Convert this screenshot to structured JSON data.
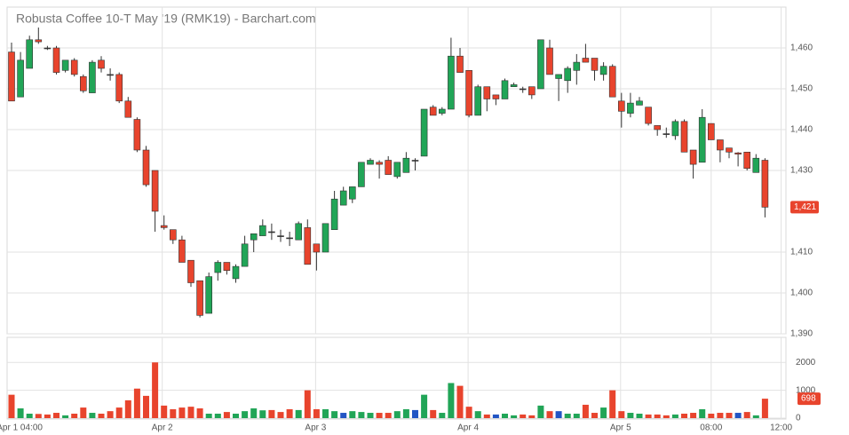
{
  "chart_data": {
    "type": "candlestick",
    "title": "Robusta Coffee 10-T May '19 (RMK19) - Barchart.com",
    "up_color": "#21a557",
    "down_color": "#e8442d",
    "grid": true,
    "open": [
      1459,
      1448,
      1455,
      1462,
      1460,
      1460,
      1454.5,
      1457,
      1453,
      1449,
      1457,
      1453.5,
      1453.5,
      1447,
      1442.5,
      1435,
      1430,
      1416.5,
      1415.5,
      1413,
      1408,
      1403,
      1395,
      1405,
      1407.5,
      1403.5,
      1406.5,
      1413,
      1414,
      1415,
      1414,
      1413.5,
      1413,
      1416,
      1412,
      1410,
      1415.5,
      1421.5,
      1423,
      1426,
      1431.5,
      1432,
      1432.5,
      1428.5,
      1429.5,
      1432.5,
      1433.5,
      1445.5,
      1444,
      1445,
      1458,
      1454.5,
      1443.5,
      1450.5,
      1448.5,
      1447.5,
      1450.5,
      1450,
      1450.5,
      1450,
      1460,
      1452.5,
      1452,
      1454.5,
      1457.5,
      1457.5,
      1453.5,
      1455.5,
      1447,
      1444,
      1446,
      1445.5,
      1441,
      1439,
      1438.5,
      1442,
      1435,
      1432,
      1441.5,
      1437.5,
      1435.5,
      1434.3,
      1434.5,
      1429.5,
      1432.5
    ],
    "high": [
      1461.3,
      1459,
      1463,
      1465,
      1460.5,
      1460.5,
      1457,
      1457.5,
      1453.5,
      1457,
      1458,
      1455,
      1454,
      1448,
      1443,
      1436,
      1430,
      1419,
      1415.5,
      1414,
      1408,
      1403,
      1405,
      1408,
      1407.5,
      1407,
      1414,
      1414.5,
      1418,
      1417,
      1415.5,
      1415,
      1417.5,
      1418,
      1412,
      1417,
      1425,
      1426,
      1426,
      1432,
      1433,
      1432.5,
      1433.5,
      1432,
      1434.5,
      1433,
      1445,
      1446,
      1445.5,
      1462.5,
      1460,
      1454.5,
      1451,
      1450.5,
      1448.5,
      1452.5,
      1451.5,
      1450.5,
      1450.5,
      1462,
      1462,
      1453.5,
      1455.5,
      1458.5,
      1461,
      1457.5,
      1456.5,
      1456,
      1449,
      1449,
      1448,
      1445.5,
      1441,
      1440.5,
      1442.5,
      1442.5,
      1435,
      1445,
      1441.5,
      1437.5,
      1435.5,
      1434.5,
      1434.5,
      1434,
      1433
    ],
    "low": [
      1447,
      1448,
      1455,
      1461,
      1459.5,
      1453.5,
      1454,
      1453,
      1449,
      1449,
      1454,
      1452,
      1446.5,
      1443,
      1434.5,
      1426,
      1415,
      1415.5,
      1412,
      1407.5,
      1401.5,
      1394,
      1395,
      1403,
      1404.5,
      1402.5,
      1406.5,
      1410,
      1414,
      1413,
      1412.5,
      1411.5,
      1413,
      1407,
      1405.5,
      1410,
      1415.5,
      1421.5,
      1422,
      1426,
      1431.5,
      1428,
      1429,
      1428,
      1429.5,
      1430,
      1433.5,
      1443.5,
      1443.5,
      1445,
      1454,
      1443,
      1443.5,
      1444.5,
      1446,
      1447.5,
      1450.5,
      1449,
      1447.5,
      1450,
      1453.5,
      1447,
      1449,
      1451,
      1456.5,
      1452,
      1452,
      1448,
      1440.5,
      1443,
      1446,
      1441,
      1438.5,
      1438,
      1437.5,
      1434.5,
      1428,
      1432,
      1437.5,
      1432,
      1433,
      1431,
      1430,
      1429.5,
      1418.5
    ],
    "close": [
      1447,
      1457,
      1462,
      1461.5,
      1460,
      1454,
      1457,
      1453.5,
      1449.5,
      1456.5,
      1455,
      1453.5,
      1447,
      1443,
      1435,
      1426.5,
      1420,
      1416,
      1413,
      1407.5,
      1402.5,
      1394.5,
      1404,
      1407.5,
      1405.5,
      1406.5,
      1412,
      1414.5,
      1416.5,
      1415,
      1414,
      1413.5,
      1417,
      1407,
      1410,
      1417,
      1423,
      1425,
      1426,
      1432,
      1432.5,
      1431.5,
      1429,
      1432,
      1433,
      1432.5,
      1445,
      1443.5,
      1445,
      1458,
      1454,
      1443.5,
      1450.5,
      1447.5,
      1447.5,
      1452,
      1451,
      1450,
      1448.5,
      1462,
      1453.5,
      1453.5,
      1455,
      1456.5,
      1456.5,
      1454.5,
      1455.5,
      1448,
      1444.5,
      1446.5,
      1447,
      1441.5,
      1440,
      1439,
      1442,
      1434.5,
      1431.5,
      1443,
      1437.5,
      1435,
      1434.5,
      1434,
      1430.5,
      1433,
      1421
    ],
    "last_label": "1,421",
    "ylim": [
      1390,
      1470
    ],
    "yticks": [
      {
        "value": 1390,
        "label": "1,390"
      },
      {
        "value": 1400,
        "label": "1,400"
      },
      {
        "value": 1410,
        "label": "1,410"
      },
      {
        "value": 1430,
        "label": "1,430"
      },
      {
        "value": 1440,
        "label": "1,440"
      },
      {
        "value": 1450,
        "label": "1,450"
      },
      {
        "value": 1460,
        "label": "1,460"
      }
    ],
    "xticks": [
      {
        "value": 0.9,
        "label": "Apr 1 04:00"
      },
      {
        "value": 16.8,
        "label": "Apr 2"
      },
      {
        "value": 33.9,
        "label": "Apr 3"
      },
      {
        "value": 50.9,
        "label": "Apr 4"
      },
      {
        "value": 67.9,
        "label": "Apr 5"
      },
      {
        "value": 78,
        "label": "08:00"
      },
      {
        "value": 85.8,
        "label": "12:00"
      }
    ],
    "volume": {
      "values": [
        840,
        350,
        160,
        150,
        130,
        190,
        100,
        160,
        380,
        190,
        160,
        250,
        380,
        640,
        1060,
        800,
        2000,
        450,
        320,
        380,
        410,
        350,
        160,
        160,
        220,
        160,
        250,
        350,
        280,
        290,
        220,
        320,
        290,
        1000,
        320,
        320,
        250,
        190,
        250,
        220,
        190,
        190,
        190,
        250,
        320,
        290,
        840,
        290,
        190,
        1260,
        1160,
        410,
        250,
        130,
        130,
        160,
        100,
        130,
        100,
        450,
        250,
        250,
        160,
        160,
        480,
        190,
        380,
        1000,
        250,
        190,
        160,
        130,
        130,
        100,
        130,
        160,
        190,
        320,
        160,
        190,
        190,
        190,
        220,
        100,
        698
      ],
      "colors": [
        "#e8442d",
        "#21a557",
        "#21a557",
        "#e8442d",
        "#e8442d",
        "#e8442d",
        "#21a557",
        "#e8442d",
        "#e8442d",
        "#21a557",
        "#e8442d",
        "#e8442d",
        "#e8442d",
        "#e8442d",
        "#e8442d",
        "#e8442d",
        "#e8442d",
        "#e8442d",
        "#e8442d",
        "#e8442d",
        "#e8442d",
        "#e8442d",
        "#21a557",
        "#21a557",
        "#e8442d",
        "#21a557",
        "#21a557",
        "#21a557",
        "#21a557",
        "#e8442d",
        "#e8442d",
        "#e8442d",
        "#21a557",
        "#e8442d",
        "#e8442d",
        "#21a557",
        "#21a557",
        "#2255c4",
        "#21a557",
        "#21a557",
        "#21a557",
        "#e8442d",
        "#e8442d",
        "#21a557",
        "#21a557",
        "#2255c4",
        "#21a557",
        "#e8442d",
        "#21a557",
        "#21a557",
        "#e8442d",
        "#e8442d",
        "#21a557",
        "#e8442d",
        "#2255c4",
        "#21a557",
        "#21a557",
        "#e8442d",
        "#e8442d",
        "#21a557",
        "#e8442d",
        "#2255c4",
        "#21a557",
        "#21a557",
        "#e8442d",
        "#e8442d",
        "#21a557",
        "#e8442d",
        "#e8442d",
        "#21a557",
        "#21a557",
        "#e8442d",
        "#e8442d",
        "#e8442d",
        "#21a557",
        "#e8442d",
        "#e8442d",
        "#21a557",
        "#e8442d",
        "#e8442d",
        "#e8442d",
        "#2255c4",
        "#e8442d",
        "#21a557",
        "#e8442d"
      ],
      "ylim": [
        0,
        2900
      ],
      "yticks": [
        0,
        1000,
        2000
      ]
    }
  }
}
